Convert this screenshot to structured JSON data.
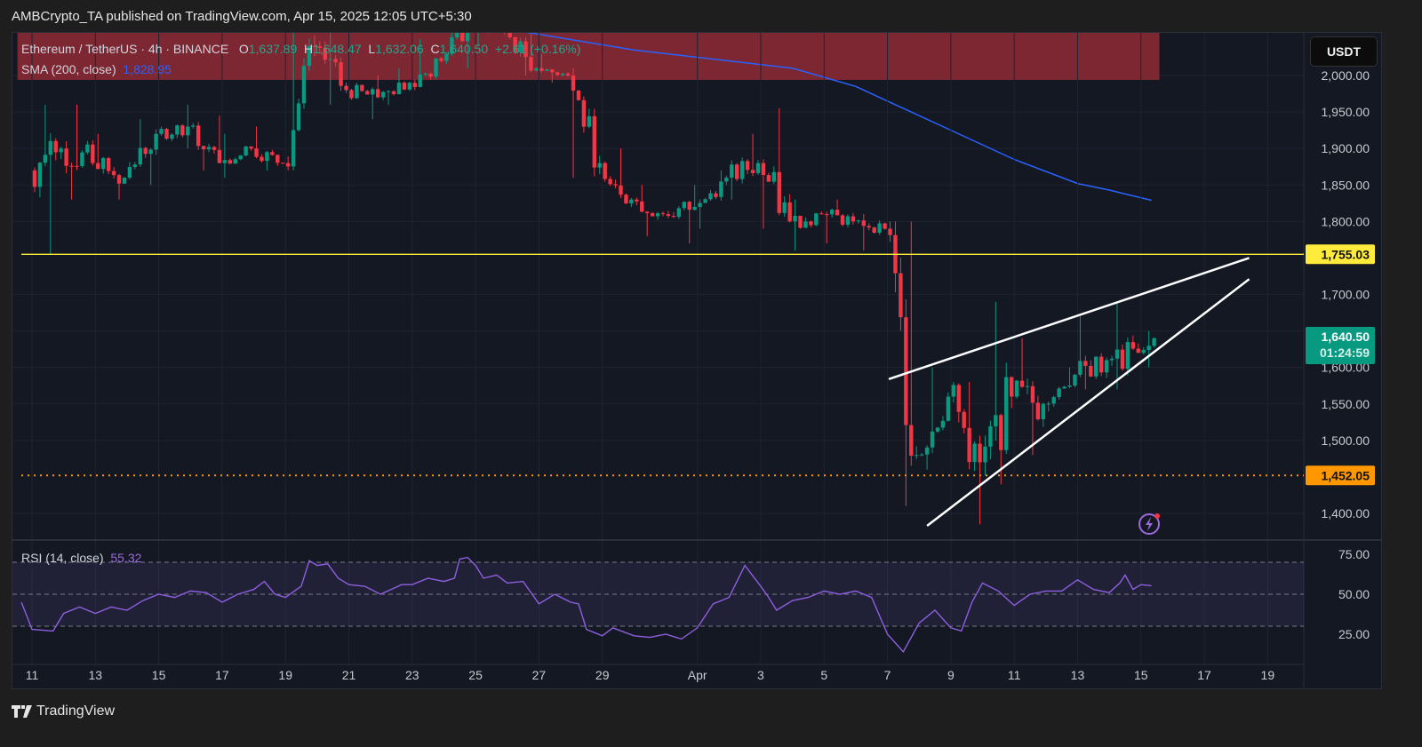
{
  "header": {
    "published": "AMBCrypto_TA published on TradingView.com, Apr 15, 2025 12:05 UTC+5:30"
  },
  "legend": {
    "symbol": "Ethereum / TetherUS · 4h · BINANCE",
    "o_label": "O",
    "o": "1,637.89",
    "h_label": "H",
    "h": "1,648.47",
    "l_label": "L",
    "l": "1,632.06",
    "c_label": "C",
    "c": "1,640.50",
    "change": "+2.61 (+0.16%)",
    "sma_label": "SMA (200, close)",
    "sma_value": "1,828.95",
    "rsi_label": "RSI (14, close)",
    "rsi_value": "55.32"
  },
  "price_axis": {
    "currency": "USDT",
    "last_price": "1,640.50",
    "countdown": "01:24:59",
    "level_resistance": "1,755.03",
    "level_support": "1,452.05"
  },
  "footer": {
    "brand": "TradingView"
  },
  "colors": {
    "up": "#089981",
    "down": "#f23645",
    "sma": "#2962ff",
    "rsi": "#7e57c2",
    "resistance": "#ffeb3b",
    "support": "#ff9800",
    "zone": "#8e2a35",
    "bg": "#141823"
  },
  "icons": [
    "lightning-alert-icon",
    "tradingview-logo-icon"
  ],
  "chart_data": [
    {
      "type": "candlestick",
      "timeframe": "4h",
      "ylim": [
        1370,
        2060
      ],
      "yticks": [
        2000,
        1950,
        1900,
        1850,
        1800,
        1700,
        1650,
        1600,
        1550,
        1500,
        1400
      ],
      "xticks": [
        "11",
        "13",
        "15",
        "17",
        "19",
        "21",
        "23",
        "25",
        "27",
        "29",
        "Apr",
        "3",
        "5",
        "7",
        "9",
        "11",
        "13",
        "15",
        "17",
        "19"
      ],
      "xtick_dates": [
        "2025-03-11",
        "2025-03-13",
        "2025-03-15",
        "2025-03-17",
        "2025-03-19",
        "2025-03-21",
        "2025-03-23",
        "2025-03-25",
        "2025-03-27",
        "2025-03-29",
        "2025-04-01",
        "2025-04-03",
        "2025-04-05",
        "2025-04-07",
        "2025-04-09",
        "2025-04-11",
        "2025-04-13",
        "2025-04-15",
        "2025-04-17",
        "2025-04-19"
      ],
      "daily_ohlc": [
        [
          "2025-03-11",
          1870,
          1960,
          1755,
          1900
        ],
        [
          "2025-03-12",
          1900,
          1960,
          1830,
          1880
        ],
        [
          "2025-03-13",
          1880,
          1920,
          1830,
          1860
        ],
        [
          "2025-03-14",
          1860,
          1940,
          1850,
          1920
        ],
        [
          "2025-03-15",
          1920,
          1960,
          1900,
          1930
        ],
        [
          "2025-03-16",
          1930,
          1945,
          1870,
          1880
        ],
        [
          "2025-03-17",
          1880,
          1920,
          1860,
          1900
        ],
        [
          "2025-03-18",
          1900,
          1930,
          1870,
          1880
        ],
        [
          "2025-03-19",
          1880,
          2060,
          1870,
          2040
        ],
        [
          "2025-03-20",
          2040,
          2070,
          1960,
          1980
        ],
        [
          "2025-03-21",
          1980,
          2000,
          1940,
          1970
        ],
        [
          "2025-03-22",
          1970,
          2010,
          1960,
          1990
        ],
        [
          "2025-03-23",
          1990,
          2050,
          1980,
          2020
        ],
        [
          "2025-03-24",
          2020,
          2100,
          2010,
          2080
        ],
        [
          "2025-03-25",
          2080,
          2100,
          2040,
          2060
        ],
        [
          "2025-03-26",
          2060,
          2080,
          2000,
          2010
        ],
        [
          "2025-03-27",
          2010,
          2030,
          1990,
          2000
        ],
        [
          "2025-03-28",
          2000,
          2010,
          1860,
          1880
        ],
        [
          "2025-03-29",
          1880,
          1900,
          1820,
          1830
        ],
        [
          "2025-03-30",
          1830,
          1850,
          1780,
          1810
        ],
        [
          "2025-03-31",
          1810,
          1850,
          1770,
          1820
        ],
        [
          "2025-04-01",
          1820,
          1870,
          1790,
          1860
        ],
        [
          "2025-04-02",
          1860,
          1920,
          1830,
          1880
        ],
        [
          "2025-04-03",
          1880,
          1955,
          1790,
          1800
        ],
        [
          "2025-04-04",
          1800,
          1830,
          1760,
          1810
        ],
        [
          "2025-04-05",
          1810,
          1830,
          1770,
          1800
        ],
        [
          "2025-04-06",
          1800,
          1810,
          1760,
          1790
        ],
        [
          "2025-04-07",
          1790,
          1800,
          1410,
          1480
        ],
        [
          "2025-04-08",
          1480,
          1600,
          1460,
          1560
        ],
        [
          "2025-04-09",
          1560,
          1580,
          1385,
          1470
        ],
        [
          "2025-04-10",
          1470,
          1690,
          1440,
          1560
        ],
        [
          "2025-04-11",
          1560,
          1640,
          1480,
          1550
        ],
        [
          "2025-04-12",
          1550,
          1600,
          1540,
          1590
        ],
        [
          "2025-04-13",
          1590,
          1670,
          1570,
          1610
        ],
        [
          "2025-04-14",
          1610,
          1690,
          1570,
          1620
        ],
        [
          "2025-04-15",
          1620,
          1650,
          1600,
          1640
        ]
      ],
      "sma200": [
        [
          "2025-03-26 12:00",
          2060
        ],
        [
          "2025-03-30",
          2035
        ],
        [
          "2025-04-04",
          2010
        ],
        [
          "2025-04-06",
          1985
        ],
        [
          "2025-04-07",
          1965
        ],
        [
          "2025-04-09",
          1925
        ],
        [
          "2025-04-11",
          1885
        ],
        [
          "2025-04-13",
          1852
        ],
        [
          "2025-04-14",
          1843
        ],
        [
          "2025-04-15 08:00",
          1829
        ]
      ],
      "horizontal_lines": [
        {
          "price": 1755.03,
          "style": "solid",
          "color": "#ffeb3b"
        },
        {
          "price": 1452.05,
          "style": "dotted",
          "color": "#ff9800"
        }
      ],
      "trendlines": [
        {
          "from": [
            "2025-04-07 01:00",
            1584
          ],
          "to": [
            "2025-04-18 10:00",
            1750
          ]
        },
        {
          "from": [
            "2025-04-08 06:00",
            1383
          ],
          "to": [
            "2025-04-18 10:00",
            1721
          ]
        }
      ],
      "zone": {
        "from": "2025-03-10 13:00",
        "to": "2025-04-15 14:00",
        "low": 1994,
        "high": 2100
      }
    },
    {
      "type": "line",
      "name": "RSI (14, close)",
      "ylim": [
        0,
        100
      ],
      "yticks": [
        75,
        50,
        25
      ],
      "bands": [
        30,
        50,
        70
      ],
      "values": [
        [
          "2025-03-10 16:00",
          45
        ],
        [
          "2025-03-11",
          28
        ],
        [
          "2025-03-11 16:00",
          27
        ],
        [
          "2025-03-12",
          38
        ],
        [
          "2025-03-12 12:00",
          42
        ],
        [
          "2025-03-13",
          38
        ],
        [
          "2025-03-13 12:00",
          42
        ],
        [
          "2025-03-14",
          40
        ],
        [
          "2025-03-14 12:00",
          46
        ],
        [
          "2025-03-15",
          50
        ],
        [
          "2025-03-15 12:00",
          48
        ],
        [
          "2025-03-16",
          52
        ],
        [
          "2025-03-16 12:00",
          51
        ],
        [
          "2025-03-17",
          45
        ],
        [
          "2025-03-17 12:00",
          50
        ],
        [
          "2025-03-18",
          53
        ],
        [
          "2025-03-18 08:00",
          58
        ],
        [
          "2025-03-18 16:00",
          50
        ],
        [
          "2025-03-19",
          48
        ],
        [
          "2025-03-19 12:00",
          55
        ],
        [
          "2025-03-19 18:00",
          71
        ],
        [
          "2025-03-20",
          68
        ],
        [
          "2025-03-20 08:00",
          69
        ],
        [
          "2025-03-20 16:00",
          60
        ],
        [
          "2025-03-21",
          56
        ],
        [
          "2025-03-21 12:00",
          55
        ],
        [
          "2025-03-22",
          50
        ],
        [
          "2025-03-22 08:00",
          53
        ],
        [
          "2025-03-22 16:00",
          56
        ],
        [
          "2025-03-23",
          56
        ],
        [
          "2025-03-23 12:00",
          60
        ],
        [
          "2025-03-24",
          58
        ],
        [
          "2025-03-24 08:00",
          60
        ],
        [
          "2025-03-24 12:00",
          72
        ],
        [
          "2025-03-24 18:00",
          73
        ],
        [
          "2025-03-25",
          68
        ],
        [
          "2025-03-25 06:00",
          60
        ],
        [
          "2025-03-25 16:00",
          62
        ],
        [
          "2025-03-26",
          57
        ],
        [
          "2025-03-26 12:00",
          58
        ],
        [
          "2025-03-27",
          44
        ],
        [
          "2025-03-27 12:00",
          50
        ],
        [
          "2025-03-28",
          45
        ],
        [
          "2025-03-28 06:00",
          44
        ],
        [
          "2025-03-28 12:00",
          28
        ],
        [
          "2025-03-29",
          24
        ],
        [
          "2025-03-29 08:00",
          29
        ],
        [
          "2025-03-30",
          24
        ],
        [
          "2025-03-30 12:00",
          23
        ],
        [
          "2025-03-31",
          25
        ],
        [
          "2025-03-31 12:00",
          22
        ],
        [
          "2025-04-01",
          29
        ],
        [
          "2025-04-01 12:00",
          44
        ],
        [
          "2025-04-02",
          48
        ],
        [
          "2025-04-02 12:00",
          68
        ],
        [
          "2025-04-03",
          55
        ],
        [
          "2025-04-03 06:00",
          48
        ],
        [
          "2025-04-03 12:00",
          40
        ],
        [
          "2025-04-04",
          46
        ],
        [
          "2025-04-04 12:00",
          48
        ],
        [
          "2025-04-05",
          52
        ],
        [
          "2025-04-05 12:00",
          50
        ],
        [
          "2025-04-06",
          52
        ],
        [
          "2025-04-06 12:00",
          48
        ],
        [
          "2025-04-07",
          25
        ],
        [
          "2025-04-07 12:00",
          14
        ],
        [
          "2025-04-08",
          32
        ],
        [
          "2025-04-08 12:00",
          40
        ],
        [
          "2025-04-09",
          29
        ],
        [
          "2025-04-09 08:00",
          27
        ],
        [
          "2025-04-09 16:00",
          45
        ],
        [
          "2025-04-10",
          57
        ],
        [
          "2025-04-10 12:00",
          52
        ],
        [
          "2025-04-11",
          43
        ],
        [
          "2025-04-11 12:00",
          50
        ],
        [
          "2025-04-12",
          52
        ],
        [
          "2025-04-12 12:00",
          52
        ],
        [
          "2025-04-13",
          59
        ],
        [
          "2025-04-13 12:00",
          53
        ],
        [
          "2025-04-14",
          51
        ],
        [
          "2025-04-14 08:00",
          57
        ],
        [
          "2025-04-14 12:00",
          62
        ],
        [
          "2025-04-14 18:00",
          53
        ],
        [
          "2025-04-15",
          56
        ],
        [
          "2025-04-15 08:00",
          55.32
        ]
      ]
    }
  ]
}
